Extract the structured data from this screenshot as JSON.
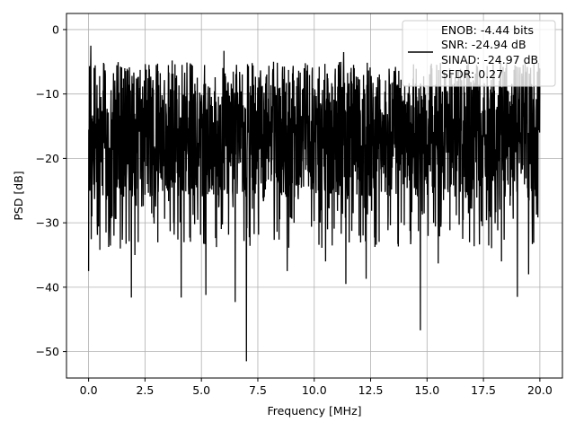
{
  "chart_data": {
    "type": "line",
    "xlabel": "Frequency [MHz]",
    "ylabel": "PSD [dB]",
    "xlim": [
      -0.98,
      21.0
    ],
    "ylim": [
      -54.1,
      2.5
    ],
    "xticks": [
      0.0,
      2.5,
      5.0,
      7.5,
      10.0,
      12.5,
      15.0,
      17.5,
      20.0
    ],
    "xtick_labels": [
      "0.0",
      "2.5",
      "5.0",
      "7.5",
      "10.0",
      "12.5",
      "15.0",
      "17.5",
      "20.0"
    ],
    "yticks": [
      0,
      -10,
      -20,
      -30,
      -40,
      -50
    ],
    "ytick_labels": [
      "0",
      "−10",
      "−20",
      "−30",
      "−40",
      "−50"
    ],
    "grid": true,
    "legend_position": "top-right",
    "colors": {
      "line": "#000000",
      "grid": "#b0b0b0",
      "axes": "#000000",
      "legend_edge": "#cccccc"
    },
    "legend": [
      {
        "text": "ENOB: -4.44 bits",
        "has_line": true
      },
      {
        "text": "SNR: -24.94 dB",
        "has_line": false
      },
      {
        "text": "SINAD: -24.97 dB",
        "has_line": false
      },
      {
        "text": "SFDR: 0.27",
        "has_line": false
      }
    ],
    "series": [
      {
        "x_start": 0.0,
        "x_end": 20.0,
        "points": 2048,
        "typical_top": -9.0,
        "typical_bottom": -26.0,
        "peaks": [
          {
            "x": 0.0,
            "y": -1.0
          },
          {
            "x": 0.0,
            "y": -37.5
          },
          {
            "x": 0.15,
            "y": -29.0
          },
          {
            "x": 0.5,
            "y": -34.2
          },
          {
            "x": 1.12,
            "y": -32.0
          },
          {
            "x": 1.9,
            "y": -41.6
          },
          {
            "x": 2.05,
            "y": -35.0
          },
          {
            "x": 2.2,
            "y": -33.0
          },
          {
            "x": 4.1,
            "y": -41.6
          },
          {
            "x": 5.2,
            "y": -41.2
          },
          {
            "x": 6.5,
            "y": -42.3
          },
          {
            "x": 7.0,
            "y": -51.5
          },
          {
            "x": 8.8,
            "y": -37.5
          },
          {
            "x": 10.5,
            "y": -36.0
          },
          {
            "x": 11.4,
            "y": -39.5
          },
          {
            "x": 12.3,
            "y": -38.7
          },
          {
            "x": 14.7,
            "y": -46.7
          },
          {
            "x": 15.5,
            "y": -36.3
          },
          {
            "x": 18.3,
            "y": -36.0
          },
          {
            "x": 19.0,
            "y": -41.5
          },
          {
            "x": 19.5,
            "y": -38.0
          },
          {
            "x": 0.1,
            "y": -2.5
          },
          {
            "x": 1.6,
            "y": -6.0
          },
          {
            "x": 3.0,
            "y": -5.5
          },
          {
            "x": 3.7,
            "y": -4.8
          },
          {
            "x": 4.6,
            "y": -5.6
          },
          {
            "x": 6.0,
            "y": -3.3
          },
          {
            "x": 8.2,
            "y": -5.0
          },
          {
            "x": 9.7,
            "y": -5.5
          },
          {
            "x": 11.3,
            "y": -3.5
          },
          {
            "x": 13.6,
            "y": -5.8
          },
          {
            "x": 14.4,
            "y": -5.4
          },
          {
            "x": 16.0,
            "y": -6.0
          },
          {
            "x": 17.2,
            "y": -5.5
          },
          {
            "x": 19.2,
            "y": -6.8
          }
        ]
      }
    ]
  }
}
